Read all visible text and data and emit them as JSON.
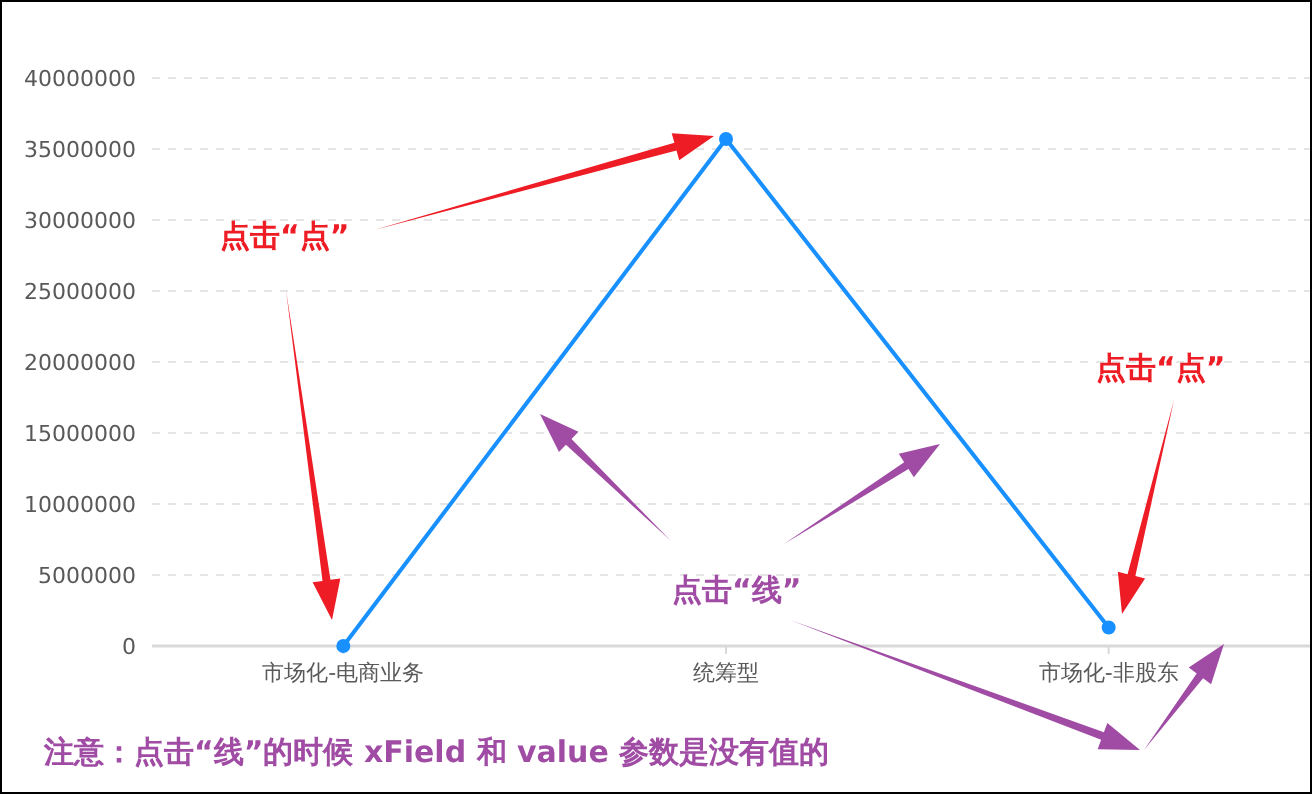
{
  "chart_data": {
    "type": "line",
    "categories": [
      "市场化-电商业务",
      "统筹型",
      "市场化-非股东"
    ],
    "series": [
      {
        "color": "#1890ff",
        "values": [
          0,
          35700000,
          1300000
        ]
      }
    ],
    "ylim": [
      0,
      40000000
    ],
    "yticks": [
      0,
      5000000,
      10000000,
      15000000,
      20000000,
      25000000,
      30000000,
      35000000,
      40000000
    ],
    "grid": "y",
    "marker": "circle",
    "line_style": "solid",
    "annotations": [
      "点击“点”",
      "点击“点”",
      "点击“线”",
      "注意：点击“线”的时候 xField 和 value 参数是没有值的"
    ]
  }
}
